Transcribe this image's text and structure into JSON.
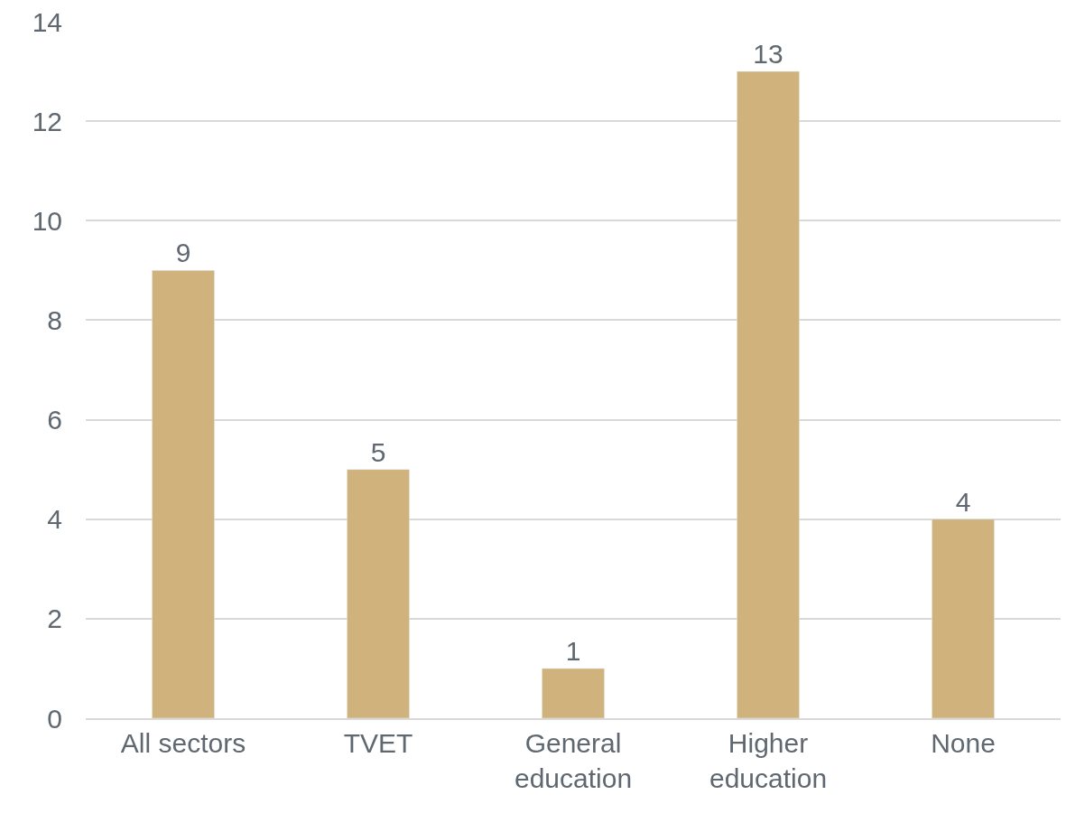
{
  "chart_data": {
    "type": "bar",
    "categories": [
      "All sectors",
      "TVET",
      "General education",
      "Higher education",
      "None"
    ],
    "values": [
      9,
      5,
      1,
      13,
      4
    ],
    "color": "#cfb27c",
    "ylim": [
      0,
      14
    ],
    "yticks": [
      0,
      2,
      4,
      6,
      8,
      10,
      12,
      14
    ],
    "grid": "y",
    "data_labels": true
  }
}
